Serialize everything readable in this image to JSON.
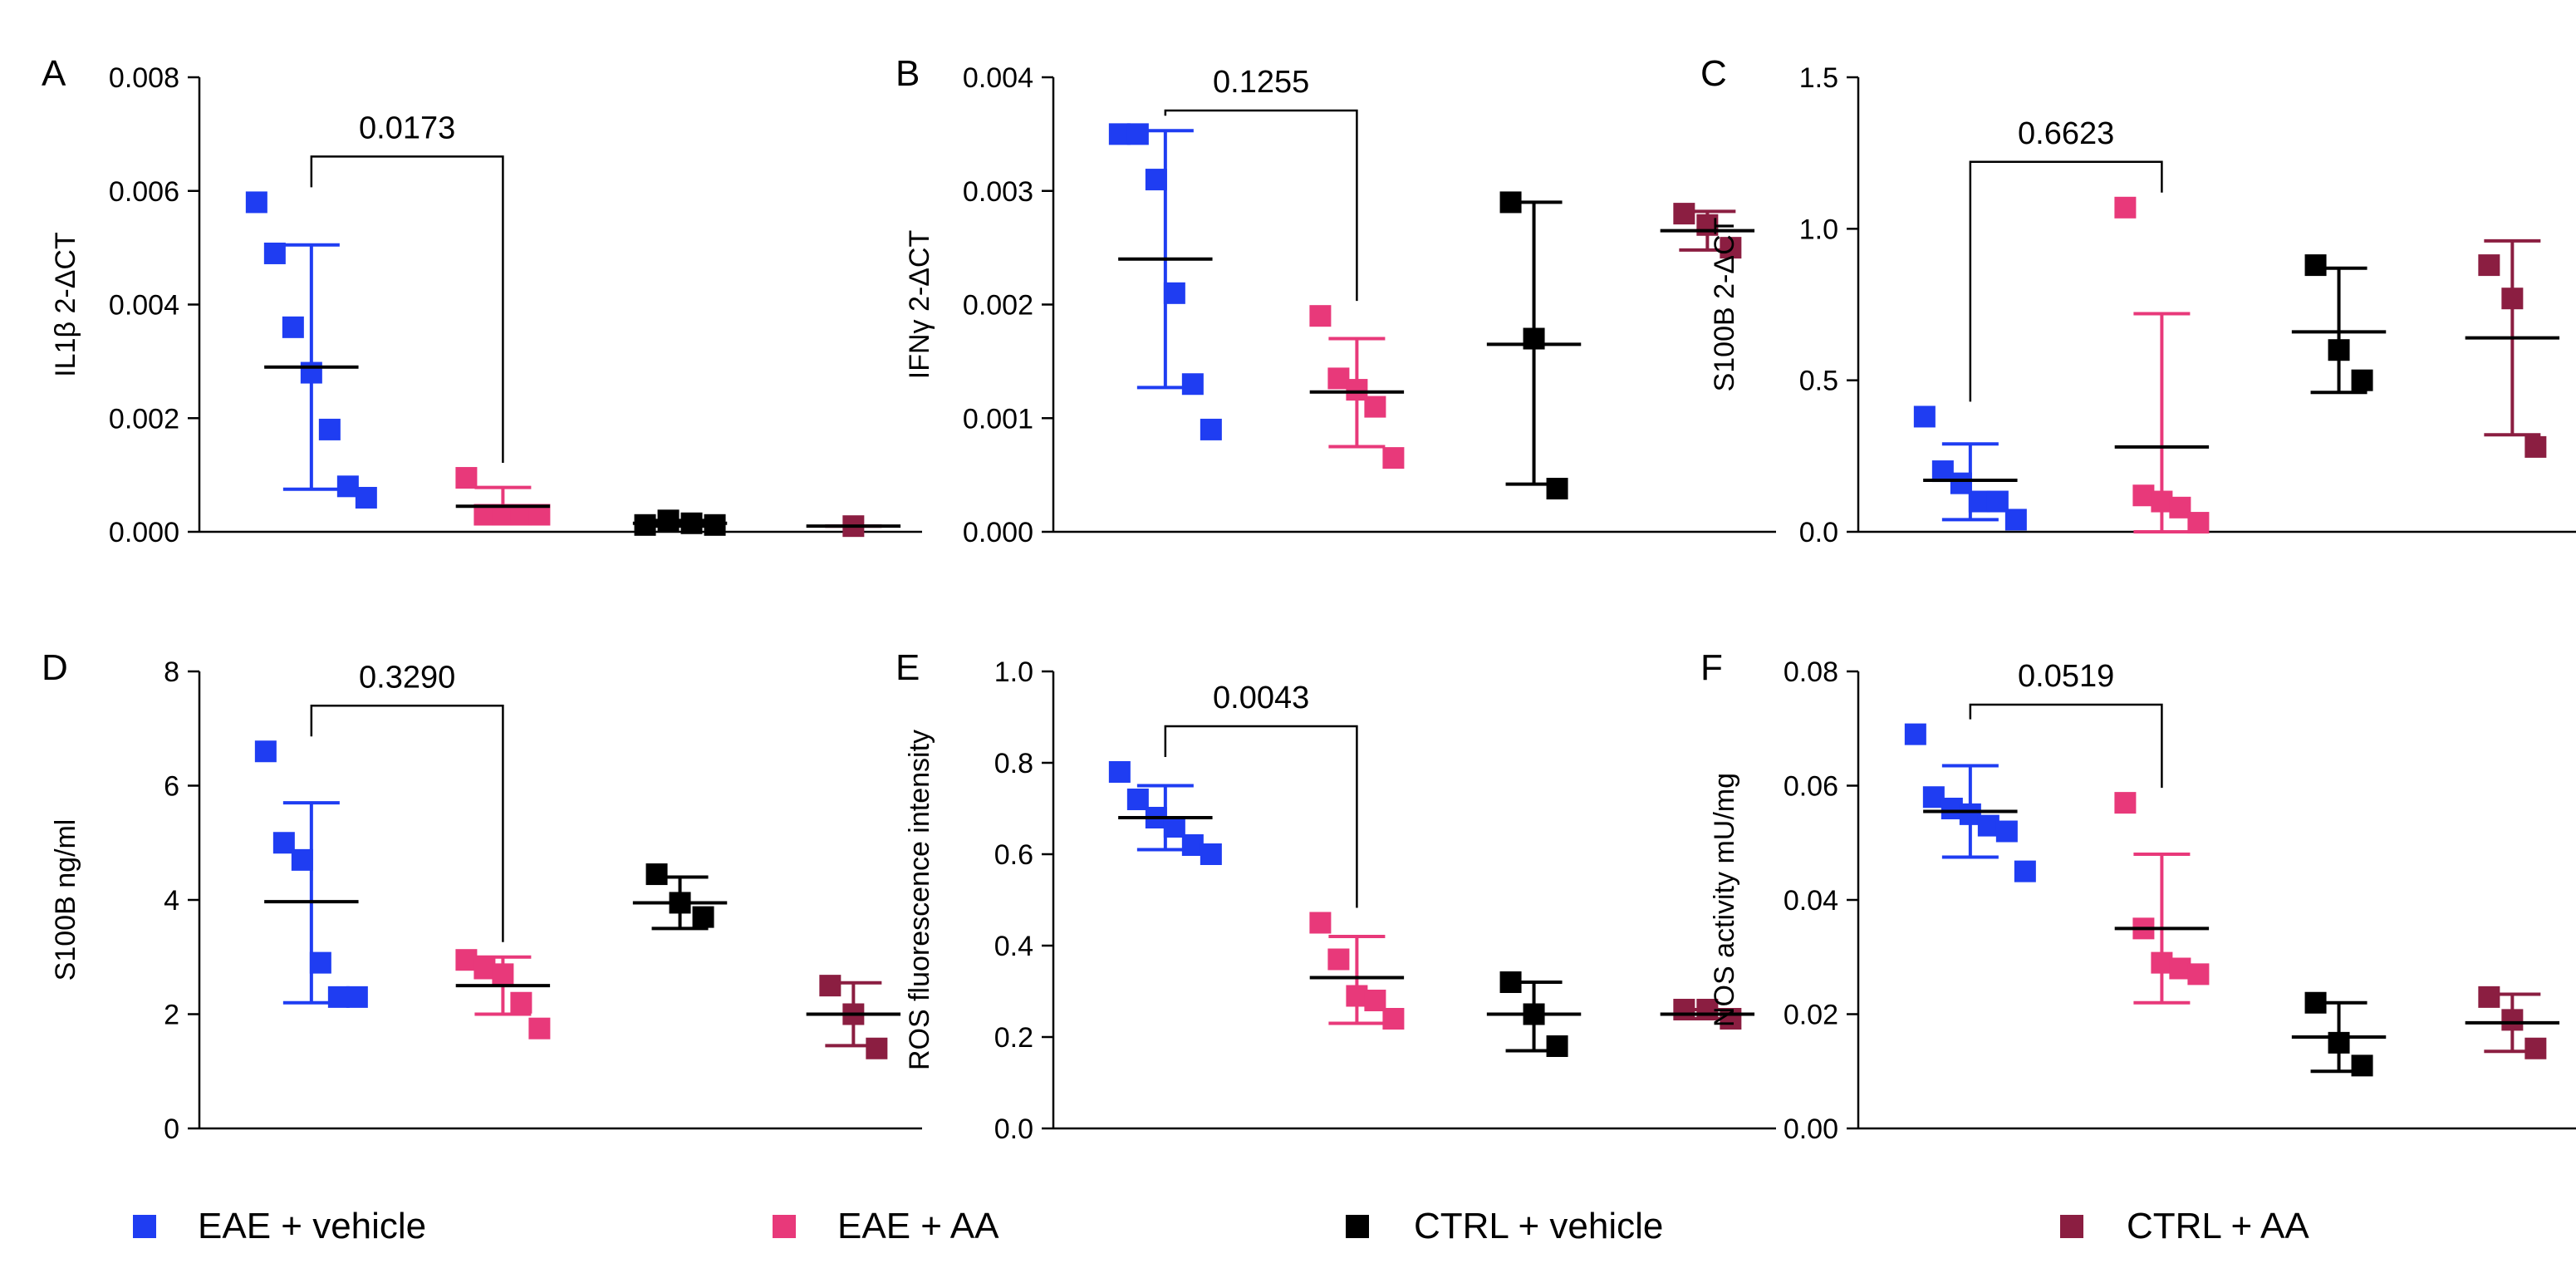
{
  "legend": {
    "items": [
      {
        "label": "EAE + vehicle",
        "color": "#1f3df2"
      },
      {
        "label": "EAE + AA",
        "color": "#e8397a"
      },
      {
        "label": "CTRL + vehicle",
        "color": "#000000"
      },
      {
        "label": "CTRL + AA",
        "color": "#8b1e41"
      }
    ]
  },
  "chart_data": [
    {
      "panel": "A",
      "type": "scatter",
      "ylabel": "IL1β 2-ΔCT",
      "ylim": [
        0,
        0.008
      ],
      "yticks": [
        "0.000",
        "0.002",
        "0.004",
        "0.006",
        "0.008"
      ],
      "comparison": {
        "label": "0.0173",
        "groups": [
          0,
          1
        ]
      },
      "groups": [
        {
          "name": "EAE + vehicle",
          "points": [
            0.0058,
            0.0049,
            0.0036,
            0.0028,
            0.0018,
            0.0008,
            0.0006
          ],
          "mean": 0.0029,
          "sd_low": 0.00075,
          "sd_high": 0.00505
        },
        {
          "name": "EAE + AA",
          "points": [
            0.00095,
            0.0003,
            0.0003,
            0.0003,
            0.0003
          ],
          "mean": 0.00045,
          "sd_low": 0.00015,
          "sd_high": 0.00078
        },
        {
          "name": "CTRL + vehicle",
          "points": [
            0.00012,
            0.0002,
            0.00015,
            0.00012
          ],
          "mean": 0.00015,
          "sd_low": 0.0001,
          "sd_high": 0.0002
        },
        {
          "name": "CTRL + AA",
          "points": [
            0.0001
          ],
          "mean": 0.0001,
          "sd_low": 0.0001,
          "sd_high": 0.0001
        }
      ]
    },
    {
      "panel": "B",
      "type": "scatter",
      "ylabel": "IFNγ 2-ΔCT",
      "ylim": [
        0,
        0.004
      ],
      "yticks": [
        "0.000",
        "0.001",
        "0.002",
        "0.003",
        "0.004"
      ],
      "comparison": {
        "label": "0.1255",
        "groups": [
          0,
          1
        ]
      },
      "groups": [
        {
          "name": "EAE + vehicle",
          "points": [
            0.0035,
            0.0035,
            0.0031,
            0.0021,
            0.0013,
            0.0009
          ],
          "mean": 0.0024,
          "sd_low": 0.00127,
          "sd_high": 0.00353
        },
        {
          "name": "EAE + AA",
          "points": [
            0.0019,
            0.00135,
            0.00125,
            0.0011,
            0.00065
          ],
          "mean": 0.00123,
          "sd_low": 0.00075,
          "sd_high": 0.0017
        },
        {
          "name": "CTRL + vehicle",
          "points": [
            0.0029,
            0.0017,
            0.00038
          ],
          "mean": 0.00165,
          "sd_low": 0.00042,
          "sd_high": 0.0029
        },
        {
          "name": "CTRL + AA",
          "points": [
            0.0028,
            0.0027,
            0.0025
          ],
          "mean": 0.00265,
          "sd_low": 0.00248,
          "sd_high": 0.00282
        }
      ]
    },
    {
      "panel": "C",
      "type": "scatter",
      "ylabel": "S100B 2-ΔCT",
      "ylim": [
        0,
        1.5
      ],
      "yticks": [
        "0.0",
        "0.5",
        "1.0",
        "1.5"
      ],
      "comparison": {
        "label": "0.6623",
        "groups": [
          0,
          1
        ]
      },
      "groups": [
        {
          "name": "EAE + vehicle",
          "points": [
            0.38,
            0.2,
            0.16,
            0.1,
            0.1,
            0.04
          ],
          "mean": 0.17,
          "sd_low": 0.04,
          "sd_high": 0.29
        },
        {
          "name": "EAE + AA",
          "points": [
            1.07,
            0.12,
            0.1,
            0.08,
            0.03
          ],
          "mean": 0.28,
          "sd_low": 0.0,
          "sd_high": 0.72
        },
        {
          "name": "CTRL + vehicle",
          "points": [
            0.88,
            0.6,
            0.5
          ],
          "mean": 0.66,
          "sd_low": 0.46,
          "sd_high": 0.87
        },
        {
          "name": "CTRL + AA",
          "points": [
            0.88,
            0.77,
            0.28
          ],
          "mean": 0.64,
          "sd_low": 0.32,
          "sd_high": 0.96
        }
      ]
    },
    {
      "panel": "D",
      "type": "scatter",
      "ylabel": "S100B ng/ml",
      "ylim": [
        0,
        8
      ],
      "yticks": [
        "0",
        "2",
        "4",
        "6",
        "8"
      ],
      "comparison": {
        "label": "0.3290",
        "groups": [
          0,
          1
        ]
      },
      "groups": [
        {
          "name": "EAE + vehicle",
          "points": [
            6.6,
            5.0,
            4.7,
            2.9,
            2.3,
            2.3
          ],
          "mean": 3.97,
          "sd_low": 2.2,
          "sd_high": 5.7
        },
        {
          "name": "EAE + AA",
          "points": [
            2.95,
            2.8,
            2.7,
            2.2,
            1.75
          ],
          "mean": 2.5,
          "sd_low": 2.0,
          "sd_high": 3.0
        },
        {
          "name": "CTRL + vehicle",
          "points": [
            4.45,
            3.95,
            3.7
          ],
          "mean": 3.95,
          "sd_low": 3.5,
          "sd_high": 4.4
        },
        {
          "name": "CTRL + AA",
          "points": [
            2.5,
            2.0,
            1.4
          ],
          "mean": 2.0,
          "sd_low": 1.45,
          "sd_high": 2.55
        }
      ]
    },
    {
      "panel": "E",
      "type": "scatter",
      "ylabel": "ROS fluorescence intensity",
      "ylim": [
        0,
        1.0
      ],
      "yticks": [
        "0.0",
        "0.2",
        "0.4",
        "0.6",
        "0.8",
        "1.0"
      ],
      "comparison": {
        "label": "0.0043",
        "groups": [
          0,
          1
        ]
      },
      "groups": [
        {
          "name": "EAE + vehicle",
          "points": [
            0.78,
            0.72,
            0.68,
            0.66,
            0.62,
            0.6
          ],
          "mean": 0.68,
          "sd_low": 0.61,
          "sd_high": 0.75
        },
        {
          "name": "EAE + AA",
          "points": [
            0.45,
            0.37,
            0.29,
            0.28,
            0.24
          ],
          "mean": 0.33,
          "sd_low": 0.23,
          "sd_high": 0.42
        },
        {
          "name": "CTRL + vehicle",
          "points": [
            0.32,
            0.25,
            0.18
          ],
          "mean": 0.25,
          "sd_low": 0.17,
          "sd_high": 0.32
        },
        {
          "name": "CTRL + AA",
          "points": [
            0.26,
            0.26,
            0.24
          ],
          "mean": 0.25,
          "sd_low": 0.24,
          "sd_high": 0.26
        }
      ]
    },
    {
      "panel": "F",
      "type": "scatter",
      "ylabel": "NOS activity mU/mg",
      "ylim": [
        0,
        0.08
      ],
      "yticks": [
        "0.00",
        "0.02",
        "0.04",
        "0.06",
        "0.08"
      ],
      "comparison": {
        "label": "0.0519",
        "groups": [
          0,
          1
        ]
      },
      "groups": [
        {
          "name": "EAE + vehicle",
          "points": [
            0.069,
            0.058,
            0.056,
            0.055,
            0.053,
            0.052,
            0.045
          ],
          "mean": 0.0555,
          "sd_low": 0.0475,
          "sd_high": 0.0635
        },
        {
          "name": "EAE + AA",
          "points": [
            0.057,
            0.035,
            0.029,
            0.028,
            0.027
          ],
          "mean": 0.035,
          "sd_low": 0.022,
          "sd_high": 0.048
        },
        {
          "name": "CTRL + vehicle",
          "points": [
            0.022,
            0.015,
            0.011
          ],
          "mean": 0.016,
          "sd_low": 0.01,
          "sd_high": 0.022
        },
        {
          "name": "CTRL + AA",
          "points": [
            0.023,
            0.019,
            0.014
          ],
          "mean": 0.0185,
          "sd_low": 0.0135,
          "sd_high": 0.0235
        }
      ]
    }
  ]
}
